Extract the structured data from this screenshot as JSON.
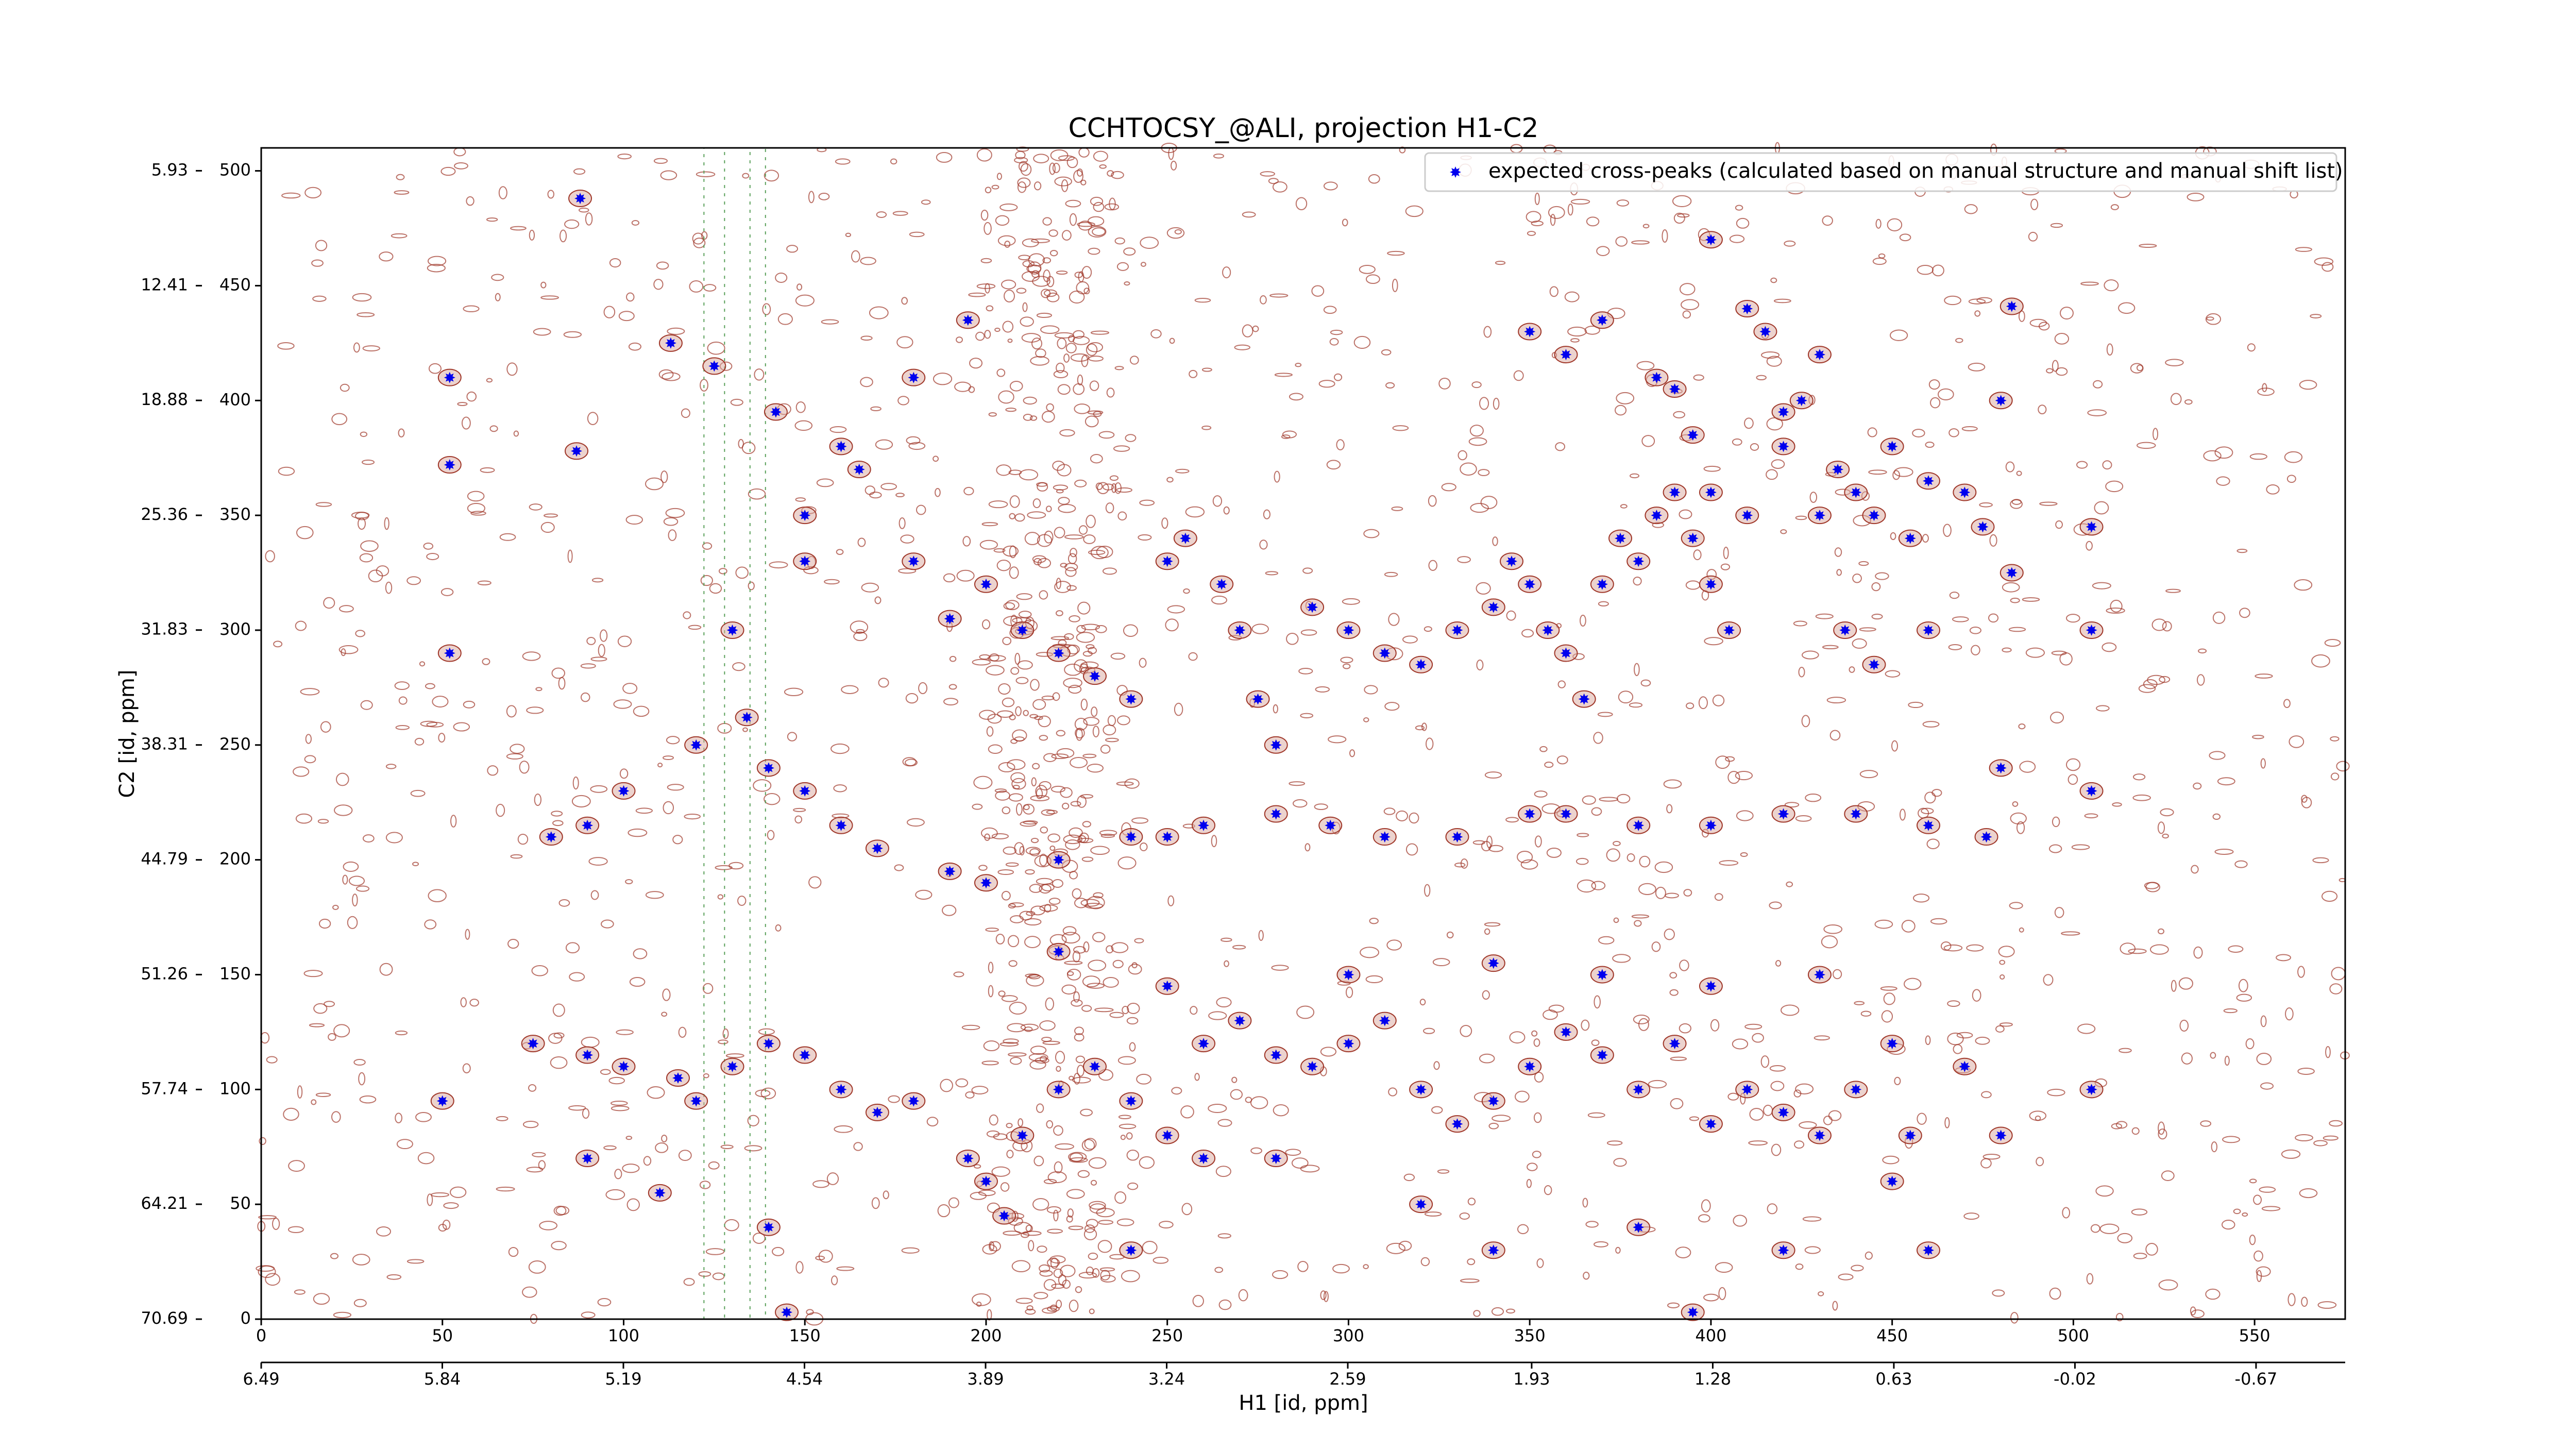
{
  "chart_data": {
    "type": "scatter",
    "title": "CCHTOCSY_@ALI, projection H1-C2",
    "xlabel": "H1 [id, ppm]",
    "ylabel": "C2 [id, ppm]",
    "xlim": [
      0,
      575
    ],
    "xticks": [
      0,
      50,
      100,
      150,
      200,
      250,
      300,
      350,
      400,
      450,
      500,
      550
    ],
    "x2lim": [
      6.49,
      -0.99
    ],
    "x2ticks": [
      6.49,
      5.84,
      5.19,
      4.54,
      3.89,
      3.24,
      2.59,
      1.93,
      1.28,
      0.63,
      -0.02,
      -0.67
    ],
    "ylim": [
      0,
      510
    ],
    "yticks": [
      0,
      50,
      100,
      150,
      200,
      250,
      300,
      350,
      400,
      450,
      500
    ],
    "y2lim": [
      70.69,
      4.64
    ],
    "y2ticks": [
      70.69,
      64.21,
      57.74,
      51.26,
      44.79,
      38.31,
      31.83,
      25.36,
      18.88,
      12.41,
      5.93
    ],
    "legend": "upper right",
    "series": [
      {
        "name": "expected cross-peaks (calculated based on manual structure and manual shift list)",
        "color": "#0000ee",
        "x": [
          88,
          52,
          52,
          87,
          125,
          113,
          142,
          165,
          180,
          190,
          200,
          210,
          220,
          230,
          240,
          250,
          255,
          265,
          270,
          275,
          280,
          290,
          300,
          310,
          320,
          330,
          340,
          345,
          350,
          355,
          360,
          365,
          370,
          375,
          380,
          385,
          390,
          395,
          400,
          405,
          410,
          420,
          425,
          430,
          435,
          440,
          445,
          450,
          455,
          460,
          470,
          480,
          475,
          483,
          483,
          350,
          360,
          370,
          390,
          395,
          400,
          410,
          415,
          420,
          430,
          437,
          445,
          460,
          505,
          505,
          505,
          480,
          476,
          460,
          440,
          420,
          400,
          380,
          360,
          350,
          330,
          310,
          295,
          280,
          260,
          250,
          240,
          220,
          200,
          190,
          170,
          160,
          150,
          140,
          120,
          100,
          90,
          80,
          75,
          90,
          100,
          115,
          120,
          130,
          140,
          150,
          160,
          170,
          180,
          195,
          200,
          205,
          210,
          220,
          230,
          240,
          250,
          260,
          270,
          280,
          290,
          300,
          310,
          320,
          330,
          340,
          350,
          360,
          370,
          380,
          390,
          400,
          410,
          420,
          430,
          440,
          450,
          455,
          470,
          480,
          505,
          395,
          220,
          250,
          300,
          340,
          370,
          400,
          430,
          450,
          460,
          420,
          380,
          340,
          320,
          280,
          260,
          240,
          140,
          145,
          110,
          90,
          50,
          52,
          130,
          134,
          150,
          150,
          160,
          180,
          195,
          400,
          385
        ],
        "y": [
          488,
          410,
          372,
          378,
          415,
          425,
          395,
          370,
          330,
          305,
          320,
          300,
          290,
          280,
          270,
          330,
          340,
          320,
          300,
          270,
          250,
          310,
          300,
          290,
          285,
          300,
          310,
          330,
          320,
          300,
          290,
          270,
          320,
          340,
          330,
          350,
          360,
          340,
          320,
          300,
          350,
          380,
          400,
          420,
          370,
          360,
          350,
          380,
          340,
          365,
          360,
          400,
          345,
          325,
          441,
          430,
          420,
          435,
          405,
          385,
          360,
          440,
          430,
          395,
          350,
          300,
          285,
          300,
          300,
          345,
          230,
          240,
          210,
          215,
          220,
          220,
          215,
          215,
          220,
          220,
          210,
          210,
          215,
          220,
          215,
          210,
          210,
          200,
          190,
          195,
          205,
          215,
          230,
          240,
          250,
          230,
          215,
          210,
          120,
          115,
          110,
          105,
          95,
          110,
          120,
          115,
          100,
          90,
          95,
          70,
          60,
          45,
          80,
          100,
          110,
          95,
          80,
          120,
          130,
          115,
          110,
          120,
          130,
          100,
          85,
          95,
          110,
          125,
          115,
          100,
          120,
          85,
          100,
          90,
          80,
          100,
          120,
          80,
          110,
          80,
          100,
          3,
          160,
          145,
          150,
          155,
          150,
          145,
          150,
          60,
          30,
          30,
          40,
          30,
          50,
          70,
          70,
          30,
          40,
          3,
          55,
          70,
          95,
          290,
          300,
          262,
          330,
          350,
          380,
          410,
          435,
          470,
          410
        ]
      }
    ]
  }
}
